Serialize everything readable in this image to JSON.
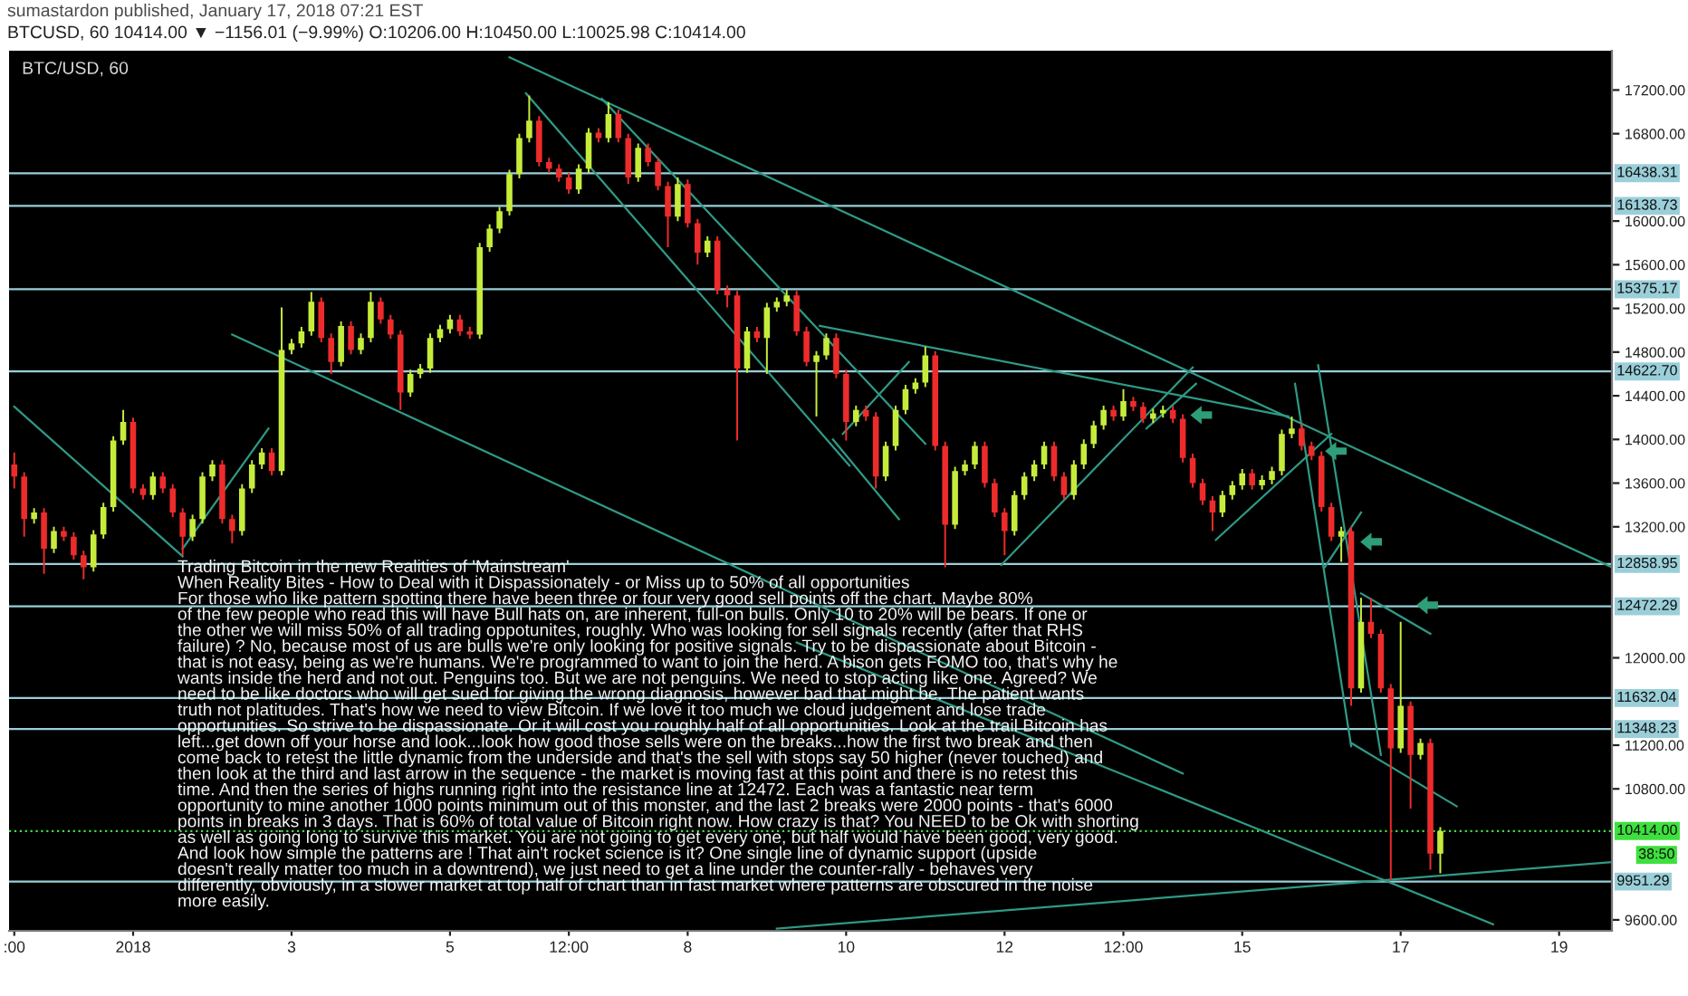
{
  "chart_data": {
    "type": "candlestick",
    "title": "BTC/USD, 60",
    "subtitle": "BTCUSD, 60 10414.00 ▼ −1156.01 (−9.99%) O:10206.00 H:10450.00 L:10025.98 C:10414.00",
    "annotations": [
      "sumastardon published, January 17, 2018 07:21 EST",
      "Trading Bitcoin in the new Realities of 'Mainstream'\nWhen Reality Bites - How to Deal with it Dispassionately - or Miss up to 50% of all opportunities\nFor those who like pattern spotting there have been three or four very good sell points off the chart. Maybe 80%\nof the few people who read this will have Bull hats on, are inherent, full-on bulls. Only 10 to 20% will be bears. If one or\nthe other we will miss 50% of all trading oppotunites, roughly. Who was looking for sell signals recently (after that RHS\nfailure) ? No, because most of us are bulls we're only looking for positive signals. Try to be dispassionate about Bitcoin -\nthat is not easy, being as we're humans. We're programmed to want to join the herd. A bison gets FOMO too, that's why he\nwants inside the herd and not out. Penguins too. But we are not penguins. We need to stop acting like one. Agreed? We\nneed to be like doctors who will get sued for giving the wrong diagnosis, however bad that might be. The patient wants\ntruth not platitudes. That's how we need to view Bitcoin. If we love it too much we cloud judgement and lose trade\nopportunities. So strive to be dispassionate. Or it will cost you roughly half of all opportunities. Look at the trail Bitcoin has\nleft...get down off your horse and look...look how good those sells were on the breaks...how the first two break and then\ncome back to retest the little dynamic from the underside and that's the sell with stops say 50 higher (never touched) and\nthen look at the third and last arrow in the sequence - the market is moving fast at this point and there is no retest this\ntime. And then the series of highs running right into the resistance line at 12472. Each was a fantastic near term\nopportunity to mine another 1000 points minimum out of this monster, and the last 2 breaks were 2000 points - that's 6000\npoints in breaks in 3 days. That is 60% of total value of Bitcoin right now. How crazy is that? You NEED to be Ok with shorting\nas well as going long to survive this market. You are not going to get every one, but half would have been good, very good.\nAnd look how simple the patterns are ! That ain't rocket science is it? One single line of dynamic support (upside\ndoesn't really matter too much in a downtrend), we just need to get a line under the counter-rally - behaves very\ndifferently, obviously, in a slower market at top half of chart than in fast market where patterns are obscured in the noise\nmore easily.",
      "38:50"
    ],
    "x": [
      "2017-12-30T12:00",
      "2017-12-30T15:00",
      "2017-12-30T18:00",
      "2017-12-30T21:00",
      "2017-12-31T00:00",
      "2017-12-31T03:00",
      "2017-12-31T06:00",
      "2017-12-31T09:00",
      "2017-12-31T12:00",
      "2017-12-31T15:00",
      "2017-12-31T18:00",
      "2017-12-31T21:00",
      "2018-01-01T00:00",
      "2018-01-01T03:00",
      "2018-01-01T06:00",
      "2018-01-01T09:00",
      "2018-01-01T12:00",
      "2018-01-01T15:00",
      "2018-01-01T18:00",
      "2018-01-01T21:00",
      "2018-01-02T00:00",
      "2018-01-02T03:00",
      "2018-01-02T06:00",
      "2018-01-02T09:00",
      "2018-01-02T12:00",
      "2018-01-02T15:00",
      "2018-01-02T18:00",
      "2018-01-02T21:00",
      "2018-01-03T00:00",
      "2018-01-03T03:00",
      "2018-01-03T06:00",
      "2018-01-03T09:00",
      "2018-01-03T12:00",
      "2018-01-03T15:00",
      "2018-01-03T18:00",
      "2018-01-03T21:00",
      "2018-01-04T00:00",
      "2018-01-04T03:00",
      "2018-01-04T06:00",
      "2018-01-04T09:00",
      "2018-01-04T12:00",
      "2018-01-04T15:00",
      "2018-01-04T18:00",
      "2018-01-04T21:00",
      "2018-01-05T00:00",
      "2018-01-05T03:00",
      "2018-01-05T06:00",
      "2018-01-05T09:00",
      "2018-01-05T12:00",
      "2018-01-05T15:00",
      "2018-01-05T18:00",
      "2018-01-05T21:00",
      "2018-01-06T00:00",
      "2018-01-06T03:00",
      "2018-01-06T06:00",
      "2018-01-06T09:00",
      "2018-01-06T12:00",
      "2018-01-06T15:00",
      "2018-01-06T18:00",
      "2018-01-06T21:00",
      "2018-01-07T00:00",
      "2018-01-07T03:00",
      "2018-01-07T06:00",
      "2018-01-07T09:00",
      "2018-01-07T12:00",
      "2018-01-07T15:00",
      "2018-01-07T18:00",
      "2018-01-07T21:00",
      "2018-01-08T00:00",
      "2018-01-08T03:00",
      "2018-01-08T06:00",
      "2018-01-08T09:00",
      "2018-01-08T12:00",
      "2018-01-08T15:00",
      "2018-01-08T18:00",
      "2018-01-08T21:00",
      "2018-01-09T00:00",
      "2018-01-09T03:00",
      "2018-01-09T06:00",
      "2018-01-09T09:00",
      "2018-01-09T12:00",
      "2018-01-09T15:00",
      "2018-01-09T18:00",
      "2018-01-09T21:00",
      "2018-01-10T00:00",
      "2018-01-10T03:00",
      "2018-01-10T06:00",
      "2018-01-10T09:00",
      "2018-01-10T12:00",
      "2018-01-10T15:00",
      "2018-01-10T18:00",
      "2018-01-10T21:00",
      "2018-01-11T00:00",
      "2018-01-11T03:00",
      "2018-01-11T06:00",
      "2018-01-11T09:00",
      "2018-01-11T12:00",
      "2018-01-11T15:00",
      "2018-01-11T18:00",
      "2018-01-11T21:00",
      "2018-01-12T00:00",
      "2018-01-12T03:00",
      "2018-01-12T06:00",
      "2018-01-12T09:00",
      "2018-01-12T12:00",
      "2018-01-12T15:00",
      "2018-01-12T18:00",
      "2018-01-12T21:00",
      "2018-01-13T00:00",
      "2018-01-13T03:00",
      "2018-01-13T06:00",
      "2018-01-13T09:00",
      "2018-01-13T12:00",
      "2018-01-13T15:00",
      "2018-01-13T18:00",
      "2018-01-13T21:00",
      "2018-01-14T00:00",
      "2018-01-14T03:00",
      "2018-01-14T06:00",
      "2018-01-14T09:00",
      "2018-01-14T12:00",
      "2018-01-14T15:00",
      "2018-01-14T18:00",
      "2018-01-14T21:00",
      "2018-01-15T00:00",
      "2018-01-15T03:00",
      "2018-01-15T06:00",
      "2018-01-15T09:00",
      "2018-01-15T12:00",
      "2018-01-15T15:00",
      "2018-01-15T18:00",
      "2018-01-15T21:00",
      "2018-01-16T00:00",
      "2018-01-16T03:00",
      "2018-01-16T06:00",
      "2018-01-16T09:00",
      "2018-01-16T12:00",
      "2018-01-16T15:00",
      "2018-01-16T18:00",
      "2018-01-16T21:00",
      "2018-01-17T00:00",
      "2018-01-17T03:00",
      "2018-01-17T06:00",
      "2018-01-17T09:00",
      "2018-01-17T12:00"
    ],
    "ohlc": [
      [
        13770,
        13880,
        13550,
        13660
      ],
      [
        13660,
        13700,
        13110,
        13270
      ],
      [
        13270,
        13370,
        13230,
        13330
      ],
      [
        13330,
        13370,
        12770,
        13000
      ],
      [
        13000,
        13200,
        12960,
        13160
      ],
      [
        13160,
        13200,
        13070,
        13110
      ],
      [
        13110,
        13150,
        12900,
        12940
      ],
      [
        12940,
        12980,
        12720,
        12830
      ],
      [
        12830,
        13170,
        12790,
        13130
      ],
      [
        13130,
        13420,
        13090,
        13380
      ],
      [
        13380,
        14030,
        13340,
        13990
      ],
      [
        13990,
        14270,
        13950,
        14160
      ],
      [
        14160,
        14200,
        13510,
        13550
      ],
      [
        13550,
        13590,
        13450,
        13490
      ],
      [
        13490,
        13700,
        13450,
        13660
      ],
      [
        13660,
        13700,
        13510,
        13550
      ],
      [
        13550,
        13590,
        13290,
        13330
      ],
      [
        13330,
        13370,
        12940,
        13110
      ],
      [
        13110,
        13310,
        13070,
        13270
      ],
      [
        13270,
        13700,
        13230,
        13660
      ],
      [
        13660,
        13810,
        13620,
        13770
      ],
      [
        13770,
        13810,
        13230,
        13270
      ],
      [
        13270,
        13310,
        13050,
        13160
      ],
      [
        13160,
        13590,
        13120,
        13550
      ],
      [
        13550,
        13810,
        13510,
        13770
      ],
      [
        13770,
        13920,
        13730,
        13880
      ],
      [
        13880,
        13920,
        13670,
        13710
      ],
      [
        13710,
        15210,
        13670,
        14820
      ],
      [
        14820,
        14920,
        14780,
        14880
      ],
      [
        14880,
        15030,
        14840,
        14990
      ],
      [
        14990,
        15350,
        14950,
        15260
      ],
      [
        15260,
        15300,
        14890,
        14930
      ],
      [
        14930,
        14970,
        14600,
        14710
      ],
      [
        14710,
        15080,
        14670,
        15040
      ],
      [
        15040,
        15080,
        14780,
        14820
      ],
      [
        14820,
        14970,
        14780,
        14930
      ],
      [
        14930,
        15350,
        14890,
        15260
      ],
      [
        15260,
        15300,
        15060,
        15100
      ],
      [
        15100,
        15140,
        14920,
        14960
      ],
      [
        14960,
        15000,
        14270,
        14430
      ],
      [
        14430,
        14640,
        14390,
        14600
      ],
      [
        14600,
        14690,
        14560,
        14650
      ],
      [
        14650,
        14970,
        14610,
        14930
      ],
      [
        14930,
        15050,
        14890,
        15010
      ],
      [
        15010,
        15140,
        14970,
        15100
      ],
      [
        15100,
        15140,
        14950,
        14990
      ],
      [
        14990,
        15030,
        14920,
        14960
      ],
      [
        14960,
        15800,
        14920,
        15760
      ],
      [
        15760,
        15970,
        15720,
        15930
      ],
      [
        15930,
        16130,
        15890,
        16090
      ],
      [
        16090,
        16470,
        16050,
        16430
      ],
      [
        16430,
        16800,
        16390,
        16760
      ],
      [
        16760,
        17150,
        16720,
        16920
      ],
      [
        16920,
        16960,
        16500,
        16540
      ],
      [
        16540,
        16580,
        16440,
        16480
      ],
      [
        16480,
        16520,
        16360,
        16400
      ],
      [
        16400,
        16440,
        16250,
        16290
      ],
      [
        16290,
        16520,
        16250,
        16480
      ],
      [
        16480,
        16850,
        16440,
        16810
      ],
      [
        16810,
        16850,
        16720,
        16760
      ],
      [
        16760,
        17090,
        16720,
        16980
      ],
      [
        16980,
        17020,
        16720,
        16760
      ],
      [
        16760,
        16800,
        16340,
        16400
      ],
      [
        16400,
        16710,
        16360,
        16670
      ],
      [
        16670,
        16710,
        16500,
        16540
      ],
      [
        16540,
        16580,
        16280,
        16320
      ],
      [
        16320,
        16360,
        15760,
        16040
      ],
      [
        16040,
        16400,
        16000,
        16340
      ],
      [
        16340,
        16380,
        15940,
        15980
      ],
      [
        15980,
        16020,
        15600,
        15710
      ],
      [
        15710,
        15860,
        15670,
        15820
      ],
      [
        15820,
        15860,
        15330,
        15370
      ],
      [
        15370,
        15410,
        15210,
        15320
      ],
      [
        15320,
        15360,
        13990,
        14650
      ],
      [
        14650,
        15030,
        14610,
        14990
      ],
      [
        14990,
        15030,
        14890,
        14930
      ],
      [
        14930,
        15250,
        14600,
        15210
      ],
      [
        15210,
        15300,
        15170,
        15260
      ],
      [
        15260,
        15370,
        15220,
        15320
      ],
      [
        15320,
        15360,
        14950,
        14990
      ],
      [
        14990,
        15030,
        14670,
        14710
      ],
      [
        14710,
        14810,
        14210,
        14770
      ],
      [
        14770,
        14970,
        14730,
        14930
      ],
      [
        14930,
        14970,
        14560,
        14600
      ],
      [
        14600,
        14640,
        13990,
        14160
      ],
      [
        14160,
        14310,
        14120,
        14270
      ],
      [
        14270,
        14310,
        14170,
        14210
      ],
      [
        14210,
        14250,
        13550,
        13660
      ],
      [
        13660,
        13980,
        13620,
        13940
      ],
      [
        13940,
        14310,
        13900,
        14270
      ],
      [
        14270,
        14500,
        14230,
        14460
      ],
      [
        14460,
        14560,
        14420,
        14520
      ],
      [
        14520,
        14850,
        14480,
        14770
      ],
      [
        14770,
        14810,
        13900,
        13940
      ],
      [
        13940,
        13980,
        12830,
        13220
      ],
      [
        13220,
        13750,
        13180,
        13710
      ],
      [
        13710,
        13810,
        13670,
        13770
      ],
      [
        13770,
        13980,
        13730,
        13940
      ],
      [
        13940,
        13980,
        13560,
        13600
      ],
      [
        13600,
        13640,
        13290,
        13330
      ],
      [
        13330,
        13370,
        12940,
        13160
      ],
      [
        13160,
        13530,
        13120,
        13490
      ],
      [
        13490,
        13700,
        13450,
        13660
      ],
      [
        13660,
        13810,
        13620,
        13770
      ],
      [
        13770,
        13980,
        13730,
        13940
      ],
      [
        13940,
        13980,
        13620,
        13660
      ],
      [
        13660,
        13700,
        13450,
        13490
      ],
      [
        13490,
        13810,
        13450,
        13770
      ],
      [
        13770,
        14000,
        13730,
        13960
      ],
      [
        13960,
        14170,
        13920,
        14130
      ],
      [
        14130,
        14310,
        14090,
        14270
      ],
      [
        14270,
        14310,
        14170,
        14210
      ],
      [
        14210,
        14460,
        14170,
        14350
      ],
      [
        14350,
        14390,
        14260,
        14300
      ],
      [
        14300,
        14340,
        14150,
        14190
      ],
      [
        14190,
        14280,
        14150,
        14240
      ],
      [
        14240,
        14310,
        14200,
        14270
      ],
      [
        14270,
        14310,
        14150,
        14190
      ],
      [
        14190,
        14230,
        13790,
        13830
      ],
      [
        13830,
        13870,
        13560,
        13600
      ],
      [
        13600,
        13640,
        13400,
        13440
      ],
      [
        13440,
        13480,
        13160,
        13330
      ],
      [
        13330,
        13530,
        13290,
        13490
      ],
      [
        13490,
        13620,
        13450,
        13580
      ],
      [
        13580,
        13730,
        13540,
        13690
      ],
      [
        13690,
        13730,
        13540,
        13580
      ],
      [
        13580,
        13670,
        13540,
        13630
      ],
      [
        13630,
        13750,
        13590,
        13710
      ],
      [
        13710,
        14090,
        13670,
        14050
      ],
      [
        14050,
        14210,
        14010,
        14100
      ],
      [
        14100,
        14140,
        13900,
        13940
      ],
      [
        13940,
        13980,
        13810,
        13850
      ],
      [
        13850,
        13890,
        13340,
        13380
      ],
      [
        13380,
        13420,
        13070,
        13110
      ],
      [
        13110,
        13200,
        12880,
        13160
      ],
      [
        13160,
        13200,
        11560,
        11720
      ],
      [
        11720,
        12550,
        11680,
        12330
      ],
      [
        12330,
        12550,
        12180,
        12220
      ],
      [
        12220,
        12260,
        11680,
        11720
      ],
      [
        11720,
        11760,
        9960,
        11170
      ],
      [
        11170,
        12330,
        11130,
        11560
      ],
      [
        11560,
        11600,
        10620,
        11110
      ],
      [
        11110,
        11260,
        11070,
        11220
      ],
      [
        11220,
        11260,
        10060,
        10206
      ],
      [
        10206,
        10450,
        10025.98,
        10414
      ]
    ],
    "colors": [
      "#ee2b2b",
      "#ee2b2b",
      "#c6ec3b",
      "#ee2b2b",
      "#c6ec3b",
      "#ee2b2b",
      "#ee2b2b",
      "#ee2b2b",
      "#c6ec3b",
      "#c6ec3b",
      "#c6ec3b",
      "#c6ec3b",
      "#ee2b2b",
      "#ee2b2b",
      "#c6ec3b",
      "#ee2b2b",
      "#ee2b2b",
      "#ee2b2b",
      "#c6ec3b",
      "#c6ec3b",
      "#c6ec3b",
      "#ee2b2b",
      "#ee2b2b",
      "#c6ec3b",
      "#c6ec3b",
      "#c6ec3b",
      "#ee2b2b",
      "#c6ec3b",
      "#c6ec3b",
      "#c6ec3b",
      "#c6ec3b",
      "#ee2b2b",
      "#ee2b2b",
      "#c6ec3b",
      "#ee2b2b",
      "#c6ec3b",
      "#c6ec3b",
      "#ee2b2b",
      "#ee2b2b",
      "#ee2b2b",
      "#c6ec3b",
      "#c6ec3b",
      "#c6ec3b",
      "#c6ec3b",
      "#c6ec3b",
      "#ee2b2b",
      "#ee2b2b",
      "#c6ec3b",
      "#c6ec3b",
      "#c6ec3b",
      "#c6ec3b",
      "#c6ec3b",
      "#c6ec3b",
      "#ee2b2b",
      "#ee2b2b",
      "#ee2b2b",
      "#ee2b2b",
      "#c6ec3b",
      "#c6ec3b",
      "#ee2b2b",
      "#c6ec3b",
      "#ee2b2b",
      "#ee2b2b",
      "#c6ec3b",
      "#ee2b2b",
      "#ee2b2b",
      "#ee2b2b",
      "#c6ec3b",
      "#ee2b2b",
      "#ee2b2b",
      "#c6ec3b",
      "#ee2b2b",
      "#ee2b2b",
      "#ee2b2b",
      "#c6ec3b",
      "#ee2b2b",
      "#c6ec3b",
      "#c6ec3b",
      "#c6ec3b",
      "#ee2b2b",
      "#ee2b2b",
      "#c6ec3b",
      "#c6ec3b",
      "#ee2b2b",
      "#ee2b2b",
      "#c6ec3b",
      "#ee2b2b",
      "#ee2b2b",
      "#c6ec3b",
      "#c6ec3b",
      "#c6ec3b",
      "#c6ec3b",
      "#c6ec3b",
      "#ee2b2b",
      "#ee2b2b",
      "#c6ec3b",
      "#c6ec3b",
      "#c6ec3b",
      "#ee2b2b",
      "#ee2b2b",
      "#ee2b2b",
      "#c6ec3b",
      "#c6ec3b",
      "#c6ec3b",
      "#c6ec3b",
      "#ee2b2b",
      "#ee2b2b",
      "#c6ec3b",
      "#c6ec3b",
      "#c6ec3b",
      "#c6ec3b",
      "#ee2b2b",
      "#c6ec3b",
      "#ee2b2b",
      "#ee2b2b",
      "#c6ec3b",
      "#c6ec3b",
      "#ee2b2b",
      "#ee2b2b",
      "#ee2b2b",
      "#ee2b2b",
      "#ee2b2b",
      "#c6ec3b",
      "#c6ec3b",
      "#c6ec3b",
      "#ee2b2b",
      "#c6ec3b",
      "#c6ec3b",
      "#c6ec3b",
      "#c6ec3b",
      "#ee2b2b",
      "#ee2b2b",
      "#ee2b2b",
      "#ee2b2b",
      "#c6ec3b",
      "#ee2b2b",
      "#c6ec3b",
      "#ee2b2b",
      "#ee2b2b",
      "#ee2b2b",
      "#c6ec3b",
      "#ee2b2b",
      "#c6ec3b",
      "#ee2b2b",
      "#c6ec3b"
    ],
    "series": [
      {
        "type": "line",
        "color": "#2f9a86",
        "x": [
          "2018-01-05T18:00",
          "2018-01-19T16:00"
        ],
        "values": [
          17500,
          12830
        ]
      },
      {
        "type": "line",
        "color": "#2f9a86",
        "x": [
          "2018-01-06T22:00",
          "2018-01-11T00:00"
        ],
        "values": [
          17120,
          13960
        ]
      },
      {
        "type": "line",
        "color": "#2f9a86",
        "x": [
          "2018-01-05T23:00",
          "2018-01-10T01:00"
        ],
        "values": [
          17170,
          13760
        ]
      },
      {
        "type": "line",
        "color": "#2f9a86",
        "x": [
          "2018-01-02T06:00",
          "2018-01-14T06:00"
        ],
        "values": [
          14960,
          10940
        ]
      },
      {
        "type": "line",
        "color": "#2f9a86",
        "x": [
          "2017-12-30T12:00",
          "2018-01-01T15:00"
        ],
        "values": [
          14300,
          12930
        ]
      },
      {
        "type": "line",
        "color": "#2f9a86",
        "x": [
          "2018-01-09T09:00",
          "2018-01-18T04:00"
        ],
        "values": [
          12140,
          9560
        ]
      },
      {
        "type": "line",
        "color": "#2f9a86",
        "x": [
          "2018-01-09T03:00",
          "2018-01-19T16:00"
        ],
        "values": [
          9520,
          10130
        ]
      },
      {
        "type": "line",
        "color": "#2f9a86",
        "x": [
          "2018-01-09T16:00",
          "2018-01-15T14:00"
        ],
        "values": [
          15040,
          14210
        ]
      },
      {
        "type": "line",
        "color": "#2f9a86",
        "x": [
          "2018-01-11T23:00",
          "2018-01-14T09:00"
        ],
        "values": [
          12850,
          14660
        ]
      },
      {
        "type": "line",
        "color": "#2f9a86",
        "x": [
          "2018-01-13T19:00",
          "2018-01-14T10:00"
        ],
        "values": [
          14100,
          14510
        ]
      },
      {
        "type": "line",
        "color": "#2f9a86",
        "x": [
          "2018-01-14T16:00",
          "2018-01-16T03:00"
        ],
        "values": [
          13080,
          14050
        ]
      },
      {
        "type": "line",
        "color": "#2f9a86",
        "x": [
          "2018-01-15T16:00",
          "2018-01-16T09:00"
        ],
        "values": [
          14510,
          11190
        ]
      },
      {
        "type": "line",
        "color": "#2f9a86",
        "x": [
          "2018-01-15T23:00",
          "2018-01-16T18:00"
        ],
        "values": [
          14680,
          11110
        ]
      },
      {
        "type": "line",
        "color": "#2f9a86",
        "x": [
          "2018-01-16T09:00",
          "2018-01-17T17:00"
        ],
        "values": [
          11220,
          10640
        ]
      },
      {
        "type": "line",
        "color": "#2f9a86",
        "x": [
          "2018-01-16T12:00",
          "2018-01-17T09:00"
        ],
        "values": [
          12590,
          12220
        ]
      },
      {
        "type": "line",
        "color": "#2f9a86",
        "x": [
          "2018-01-16T01:00",
          "2018-01-16T12:00"
        ],
        "values": [
          12830,
          13330
        ]
      },
      {
        "type": "line",
        "color": "#2f9a86",
        "x": [
          "2018-01-01T15:00",
          "2018-01-02T17:00"
        ],
        "values": [
          13000,
          14100
        ]
      },
      {
        "type": "line",
        "color": "#2f9a86",
        "x": [
          "2018-01-09T20:00",
          "2018-01-10T16:00"
        ],
        "values": [
          14000,
          13270
        ]
      },
      {
        "type": "line",
        "color": "#2f9a86",
        "x": [
          "2018-01-09T23:00",
          "2018-01-10T19:00"
        ],
        "values": [
          14050,
          14710
        ]
      }
    ],
    "ref_lines": [
      {
        "axis": "y",
        "value": 16438.31,
        "label": "16438.31",
        "color": "#9acfd9"
      },
      {
        "axis": "y",
        "value": 16138.73,
        "label": "16138.73",
        "color": "#9acfd9"
      },
      {
        "axis": "y",
        "value": 15375.17,
        "label": "15375.17",
        "color": "#9acfd9"
      },
      {
        "axis": "y",
        "value": 14622.7,
        "label": "14622.70",
        "color": "#9acfd9"
      },
      {
        "axis": "y",
        "value": 12858.95,
        "label": "12858.95",
        "color": "#9acfd9"
      },
      {
        "axis": "y",
        "value": 12472.29,
        "label": "12472.29",
        "color": "#9acfd9"
      },
      {
        "axis": "y",
        "value": 11632.04,
        "label": "11632.04",
        "color": "#9acfd9"
      },
      {
        "axis": "y",
        "value": 11348.23,
        "label": "11348.23",
        "color": "#9acfd9"
      },
      {
        "axis": "y",
        "value": 10414.0,
        "label": "10414.00",
        "color": "#3ee03e",
        "line_style": "dotted"
      },
      {
        "axis": "y",
        "value": 9951.29,
        "label": "9951.29",
        "color": "#9acfd9"
      }
    ],
    "xlim": [
      "2017-12-30T10:25",
      "2018-01-19T16:00"
    ],
    "ylim": [
      9500,
      17560
    ],
    "xticks": [
      {
        "value": "2017-12-30T12:00",
        "label": ":00"
      },
      {
        "value": "2018-01-01T00:00",
        "label": "2018"
      },
      {
        "value": "2018-01-03T00:00",
        "label": "3"
      },
      {
        "value": "2018-01-05T00:00",
        "label": "5"
      },
      {
        "value": "2018-01-06T12:00",
        "label": "12:00"
      },
      {
        "value": "2018-01-08T00:00",
        "label": "8"
      },
      {
        "value": "2018-01-10T00:00",
        "label": "10"
      },
      {
        "value": "2018-01-12T00:00",
        "label": "12"
      },
      {
        "value": "2018-01-13T12:00",
        "label": "12:00"
      },
      {
        "value": "2018-01-15T00:00",
        "label": "15"
      },
      {
        "value": "2018-01-17T00:00",
        "label": "17"
      },
      {
        "value": "2018-01-19T00:00",
        "label": "19"
      }
    ],
    "yticks": [
      {
        "value": 17200,
        "label": "17200.00"
      },
      {
        "value": 16800,
        "label": "16800.00"
      },
      {
        "value": 16000,
        "label": "16000.00"
      },
      {
        "value": 15600,
        "label": "15600.00"
      },
      {
        "value": 15200,
        "label": "15200.00"
      },
      {
        "value": 14800,
        "label": "14800.00"
      },
      {
        "value": 14400,
        "label": "14400.00"
      },
      {
        "value": 14000,
        "label": "14000.00"
      },
      {
        "value": 13600,
        "label": "13600.00"
      },
      {
        "value": 13200,
        "label": "13200.00"
      },
      {
        "value": 12000,
        "label": "12000.00"
      },
      {
        "value": 11200,
        "label": "11200.00"
      },
      {
        "value": 10800,
        "label": "10800.00"
      },
      {
        "value": 9600,
        "label": "9600.00"
      }
    ]
  }
}
